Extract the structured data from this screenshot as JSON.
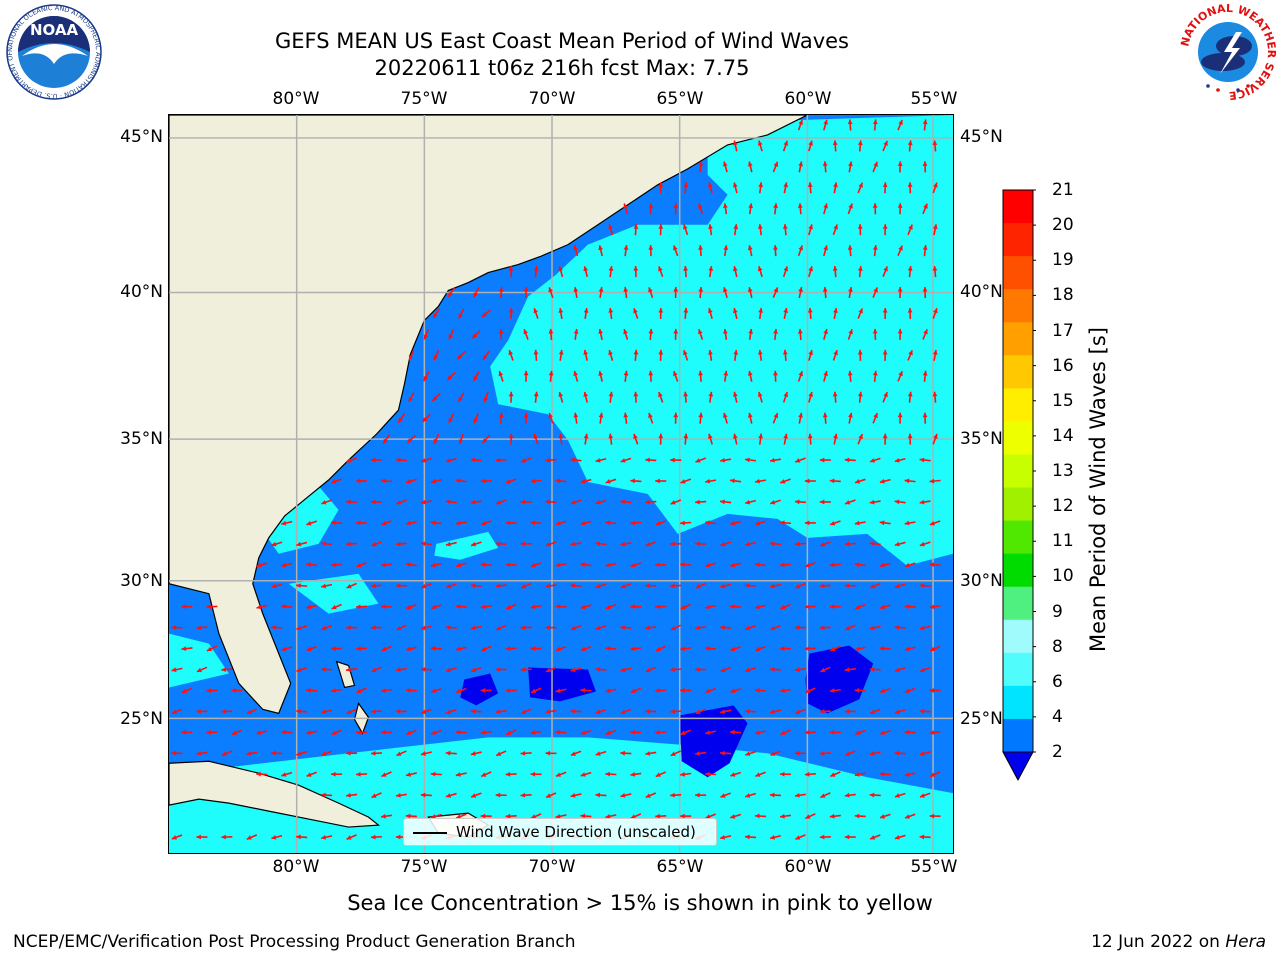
{
  "header": {
    "title_line1": "GEFS MEAN US East Coast Mean Period of Wind Waves",
    "title_line2": "20220611 t06z 216h fcst   Max: 7.75"
  },
  "logos": {
    "noaa_text": "NOAA",
    "noaa_ring_text": "NATIONAL OCEANIC AND ATMOSPHERIC ADMINISTRATION · U.S. DEPARTMENT OF COMMERCE",
    "nws_ring_text": "NATIONAL WEATHER SERVICE"
  },
  "map": {
    "lon_ticks": [
      "80°W",
      "75°W",
      "70°W",
      "65°W",
      "60°W",
      "55°W"
    ],
    "lat_ticks": [
      "45°N",
      "40°N",
      "35°N",
      "30°N",
      "25°N"
    ],
    "lon_range": [
      -85,
      -54.3
    ],
    "lat_range": [
      20.5,
      46
    ],
    "colors": {
      "land": "#efefdc",
      "ocean_2_4": "#0a7eff",
      "ocean_4_6": "#1efcfc",
      "ocean_lt_2": "#0000ef",
      "arrow": "#ff1010",
      "grid": "#b0b0b0"
    }
  },
  "colorbar": {
    "label": "Mean Period of Wind Waves [s]",
    "ticks": [
      "21",
      "20",
      "19",
      "18",
      "17",
      "16",
      "15",
      "14",
      "13",
      "12",
      "11",
      "10",
      "9",
      "8",
      "6",
      "4",
      "2"
    ],
    "colors": [
      "#ff0000",
      "#ff2400",
      "#ff5000",
      "#ff7800",
      "#ffa000",
      "#ffc800",
      "#ffee00",
      "#eeff00",
      "#c8ff00",
      "#a0f000",
      "#50e800",
      "#00dc00",
      "#50f080",
      "#a0fcfc",
      "#50fcfc",
      "#00e4ff",
      "#0078ff"
    ],
    "under_color": "#0000ef"
  },
  "legend": {
    "label": "Wind Wave Direction (unscaled)"
  },
  "footer": {
    "note": "Sea Ice Concentration > 15% is shown in pink to yellow",
    "left": "NCEP/EMC/Verification Post Processing Product Generation Branch",
    "right_date": "12 Jun 2022 on ",
    "right_machine": "Hera"
  }
}
